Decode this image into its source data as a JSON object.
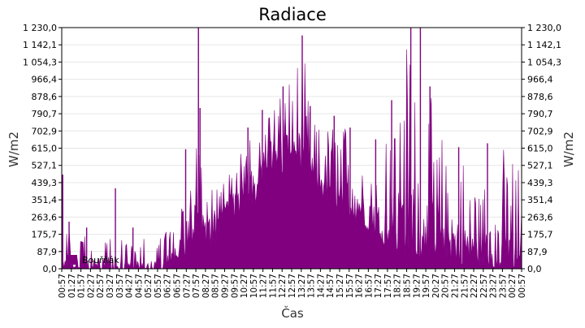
{
  "chart_data": {
    "type": "area",
    "title": "Radiace",
    "xlabel": "Čas",
    "ylabel": "W/m2",
    "ylabel_right": "W/m2",
    "ylim": [
      0,
      1230
    ],
    "y_ticks": [
      "0,0",
      "87,9",
      "175,7",
      "263,6",
      "351,4",
      "439,3",
      "527,1",
      "615,0",
      "702,9",
      "790,7",
      "878,6",
      "966,4",
      "1 054,3",
      "1 142,1",
      "1 230,0"
    ],
    "x_ticks": [
      "00:57",
      "01:27",
      "01:57",
      "02:27",
      "02:57",
      "03:27",
      "03:57",
      "04:27",
      "04:57",
      "05:27",
      "05:57",
      "06:27",
      "06:57",
      "07:27",
      "07:57",
      "08:27",
      "08:57",
      "09:27",
      "09:57",
      "10:27",
      "10:57",
      "11:27",
      "11:57",
      "12:27",
      "12:57",
      "13:27",
      "13:57",
      "14:27",
      "14:57",
      "15:27",
      "15:57",
      "16:27",
      "16:57",
      "17:27",
      "17:57",
      "18:27",
      "18:57",
      "19:27",
      "19:57",
      "20:27",
      "20:57",
      "21:27",
      "21:57",
      "22:27",
      "22:57",
      "23:27",
      "23:57",
      "00:27",
      "00:57"
    ],
    "grid": true,
    "legend_position": "bottom-left",
    "series": [
      {
        "name": "Bouřňák",
        "color": "#800080",
        "x": [
          "00:57",
          "01:27",
          "01:57",
          "02:27",
          "02:57",
          "03:27",
          "03:57",
          "04:27",
          "04:57",
          "05:27",
          "05:57",
          "06:27",
          "06:57",
          "07:27",
          "07:57",
          "08:27",
          "08:57",
          "09:27",
          "09:57",
          "10:27",
          "10:57",
          "11:27",
          "11:57",
          "12:27",
          "12:57",
          "13:27",
          "13:57",
          "14:27",
          "14:57",
          "15:27",
          "15:57",
          "16:27",
          "16:57",
          "17:27",
          "17:57",
          "18:27",
          "18:57",
          "19:27",
          "19:57",
          "20:27",
          "20:57",
          "21:27",
          "21:57",
          "22:27",
          "22:57",
          "23:27",
          "23:57",
          "00:27",
          "00:57"
        ],
        "min": [
          0,
          0,
          0,
          0,
          0,
          0,
          0,
          0,
          0,
          0,
          0,
          0,
          5,
          20,
          40,
          60,
          80,
          120,
          160,
          220,
          300,
          360,
          420,
          430,
          440,
          420,
          400,
          330,
          300,
          280,
          250,
          210,
          180,
          150,
          90,
          60,
          20,
          20,
          10,
          10,
          5,
          0,
          0,
          0,
          0,
          0,
          0,
          0,
          0
        ],
        "low": [
          10,
          15,
          10,
          5,
          5,
          5,
          0,
          0,
          0,
          0,
          0,
          5,
          30,
          140,
          170,
          210,
          240,
          280,
          330,
          380,
          440,
          490,
          560,
          590,
          600,
          540,
          470,
          420,
          400,
          360,
          330,
          290,
          250,
          220,
          200,
          190,
          170,
          160,
          150,
          140,
          120,
          90,
          80,
          70,
          60,
          50,
          50,
          40,
          30
        ],
        "high": [
          200,
          220,
          180,
          150,
          160,
          200,
          170,
          120,
          160,
          180,
          170,
          200,
          310,
          520,
          700,
          420,
          440,
          470,
          590,
          610,
          720,
          820,
          950,
          880,
          960,
          1190,
          830,
          700,
          750,
          780,
          720,
          630,
          600,
          560,
          820,
          880,
          1230,
          1230,
          840,
          920,
          620,
          600,
          560,
          430,
          470,
          640,
          630,
          570,
          550
        ],
        "points": [
          {
            "x": "01:00",
            "y": 480
          },
          {
            "x": "01:20",
            "y": 240
          },
          {
            "x": "02:15",
            "y": 210
          },
          {
            "x": "03:45",
            "y": 410
          },
          {
            "x": "04:40",
            "y": 210
          },
          {
            "x": "07:25",
            "y": 610
          },
          {
            "x": "08:05",
            "y": 1230
          },
          {
            "x": "08:10",
            "y": 820
          },
          {
            "x": "10:40",
            "y": 720
          },
          {
            "x": "11:25",
            "y": 810
          },
          {
            "x": "12:30",
            "y": 930
          },
          {
            "x": "13:30",
            "y": 1190
          },
          {
            "x": "13:55",
            "y": 830
          },
          {
            "x": "15:10",
            "y": 780
          },
          {
            "x": "16:00",
            "y": 720
          },
          {
            "x": "17:20",
            "y": 660
          },
          {
            "x": "18:10",
            "y": 860
          },
          {
            "x": "19:10",
            "y": 1230
          },
          {
            "x": "19:40",
            "y": 1230
          },
          {
            "x": "20:10",
            "y": 930
          },
          {
            "x": "21:40",
            "y": 620
          },
          {
            "x": "23:10",
            "y": 640
          }
        ]
      }
    ]
  }
}
